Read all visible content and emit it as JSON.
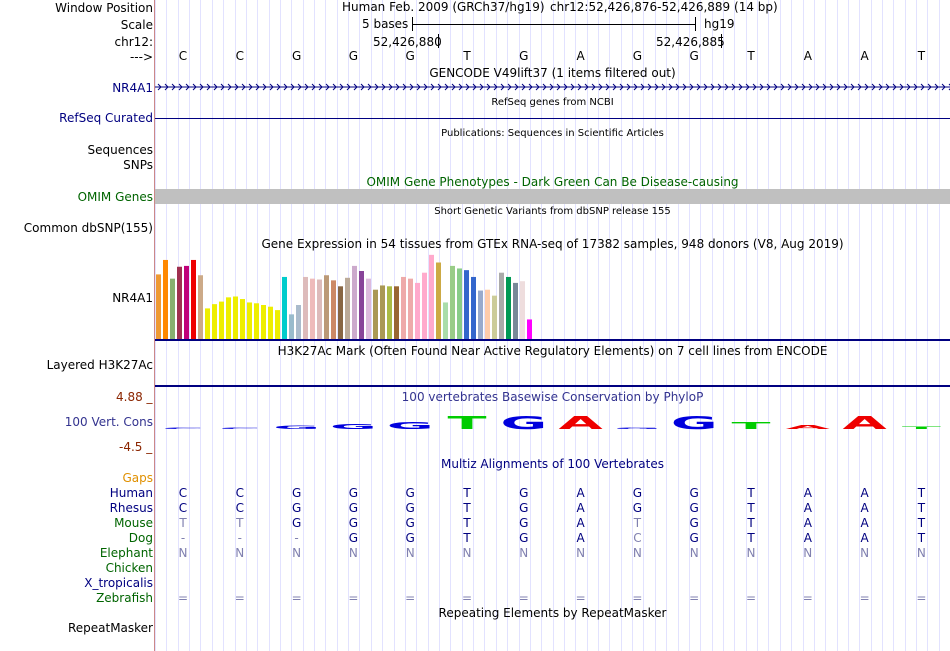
{
  "labels": {
    "window_position": "Window Position",
    "scale": "Scale",
    "chr": "chr12:",
    "arrow": "--->",
    "nr4a1_gencode": "NR4A1",
    "refseq_curated": "RefSeq Curated",
    "sequences": "Sequences",
    "snps": "SNPs",
    "omim_genes": "OMIM Genes",
    "common_dbsnp": "Common dbSNP(155)",
    "nr4a1_gtex": "NR4A1",
    "layered_h3k27ac": "Layered H3K27Ac",
    "cons_max": "4.88 _",
    "vert_cons": "100 Vert. Cons",
    "cons_min": "-4.5 _",
    "gaps": "Gaps",
    "repeatmasker": "RepeatMasker"
  },
  "header": {
    "assembly": "Human Feb. 2009 (GRCh37/hg19)",
    "position": "chr12:52,426,876-52,426,889 (14 bp)",
    "scale_text": "5 bases",
    "scale_db": "hg19",
    "coord1": "52,426,880",
    "coord2": "52,426,885"
  },
  "bases": [
    "C",
    "C",
    "G",
    "G",
    "G",
    "T",
    "G",
    "A",
    "G",
    "G",
    "T",
    "A",
    "A",
    "T"
  ],
  "tracks": {
    "gencode": "GENCODE V49lift37 (1 items filtered out)",
    "refseq": "RefSeq genes from NCBI",
    "publications": "Publications: Sequences in Scientific Articles",
    "omim": "OMIM Gene Phenotypes - Dark Green Can Be Disease-causing",
    "dbsnp": "Short Genetic Variants from dbSNP release 155",
    "gtex": "Gene Expression in 54 tissues from GTEx RNA-seq of 17382 samples, 948 donors (V8, Aug 2019)",
    "h3k27ac": "H3K27Ac Mark (Often Found Near Active Regulatory Elements) on 7 cell lines from ENCODE",
    "phylop": "100 vertebrates Basewise Conservation by PhyloP",
    "multiz": "Multiz Alignments of 100 Vertebrates",
    "repeatmasker": "Repeating Elements by RepeatMasker"
  },
  "chart_data": {
    "type": "bar",
    "title": "Gene Expression in 54 tissues from GTEx RNA-seq of 17382 samples, 948 donors (V8, Aug 2019)",
    "ylim": [
      0,
      100
    ],
    "values": [
      76,
      93,
      71,
      85,
      86,
      93,
      75,
      36,
      41,
      44,
      49,
      50,
      47,
      43,
      42,
      40,
      38,
      34,
      73,
      29,
      40,
      73,
      71,
      70,
      75,
      69,
      62,
      72,
      86,
      80,
      71,
      58,
      63,
      62,
      62,
      73,
      71,
      66,
      78,
      99,
      90,
      43,
      86,
      83,
      81,
      73,
      57,
      58,
      51,
      78,
      73,
      66,
      68,
      23
    ],
    "colors": [
      "#ee9933",
      "#ff8800",
      "#88b070",
      "#a03050",
      "#c0007a",
      "#ee0000",
      "#ccaa88",
      "#eeee00",
      "#eeee00",
      "#eeee00",
      "#eeee00",
      "#eeee00",
      "#eeee00",
      "#eeee00",
      "#eeee00",
      "#eeee00",
      "#eeee00",
      "#eeee00",
      "#00cccc",
      "#99bbcc",
      "#aabbcc",
      "#ddbbbb",
      "#eebbbb",
      "#ddbbbb",
      "#bb9977",
      "#cc8866",
      "#886644",
      "#bbaa99",
      "#ccaacc",
      "#884499",
      "#ddbbdd",
      "#aa9955",
      "#aa9955",
      "#aabb44",
      "#996633",
      "#eeaaaa",
      "#eeaaaa",
      "#ffaacc",
      "#ffaacc",
      "#ffaacc",
      "#ccaa44",
      "#aaddaa",
      "#99cc88",
      "#88cc88",
      "#3366cc",
      "#3366cc",
      "#99aacc",
      "#ffccaa",
      "#cccc99",
      "#aaaaaa",
      "#009955",
      "#778899",
      "#eedddd",
      "#ff00ff"
    ]
  },
  "phylop": {
    "letters": [
      "C",
      "C",
      "G",
      "G",
      "G",
      "T",
      "G",
      "A",
      "G",
      "G",
      "T",
      "A",
      "A",
      "T"
    ],
    "scores": [
      0.05,
      0.05,
      0.12,
      0.2,
      0.3,
      0.55,
      0.55,
      0.55,
      0.05,
      0.55,
      0.3,
      0.15,
      0.55,
      0.1
    ],
    "colors": {
      "A": "#ee0000",
      "C": "#0000dd",
      "G": "#0000dd",
      "T": "#00cc00"
    }
  },
  "multiz": {
    "species": [
      {
        "name": "Human",
        "color": "#000080",
        "row": [
          "C",
          "C",
          "G",
          "G",
          "G",
          "T",
          "G",
          "A",
          "G",
          "G",
          "T",
          "A",
          "A",
          "T"
        ],
        "muted": false
      },
      {
        "name": "Rhesus",
        "color": "#000080",
        "row": [
          "C",
          "C",
          "G",
          "G",
          "G",
          "T",
          "G",
          "A",
          "G",
          "G",
          "T",
          "A",
          "A",
          "T"
        ],
        "muted": false
      },
      {
        "name": "Mouse",
        "color": "#006400",
        "row": [
          "T",
          "T",
          "G",
          "G",
          "G",
          "T",
          "G",
          "A",
          "T",
          "G",
          "T",
          "A",
          "A",
          "T"
        ],
        "muted": false
      },
      {
        "name": "Dog",
        "color": "#006400",
        "row": [
          "-",
          "-",
          "-",
          "G",
          "G",
          "T",
          "G",
          "A",
          "C",
          "G",
          "T",
          "A",
          "A",
          "T"
        ],
        "muted": false
      },
      {
        "name": "Elephant",
        "color": "#006400",
        "row": [
          "N",
          "N",
          "N",
          "N",
          "N",
          "N",
          "N",
          "N",
          "N",
          "N",
          "N",
          "N",
          "N",
          "N"
        ],
        "muted": true
      },
      {
        "name": "Chicken",
        "color": "#006400",
        "row": [
          "",
          "",
          "",
          "",
          "",
          "",
          "",
          "",
          "",
          "",
          "",
          "",
          "",
          ""
        ],
        "muted": true
      },
      {
        "name": "X_tropicalis",
        "color": "#000080",
        "row": [
          "",
          "",
          "",
          "",
          "",
          "",
          "",
          "",
          "",
          "",
          "",
          "",
          "",
          ""
        ],
        "muted": true
      },
      {
        "name": "Zebrafish",
        "color": "#006400",
        "row": [
          "=",
          "=",
          "=",
          "=",
          "=",
          "=",
          "=",
          "=",
          "=",
          "=",
          "=",
          "=",
          "=",
          "="
        ],
        "muted": true
      }
    ]
  }
}
